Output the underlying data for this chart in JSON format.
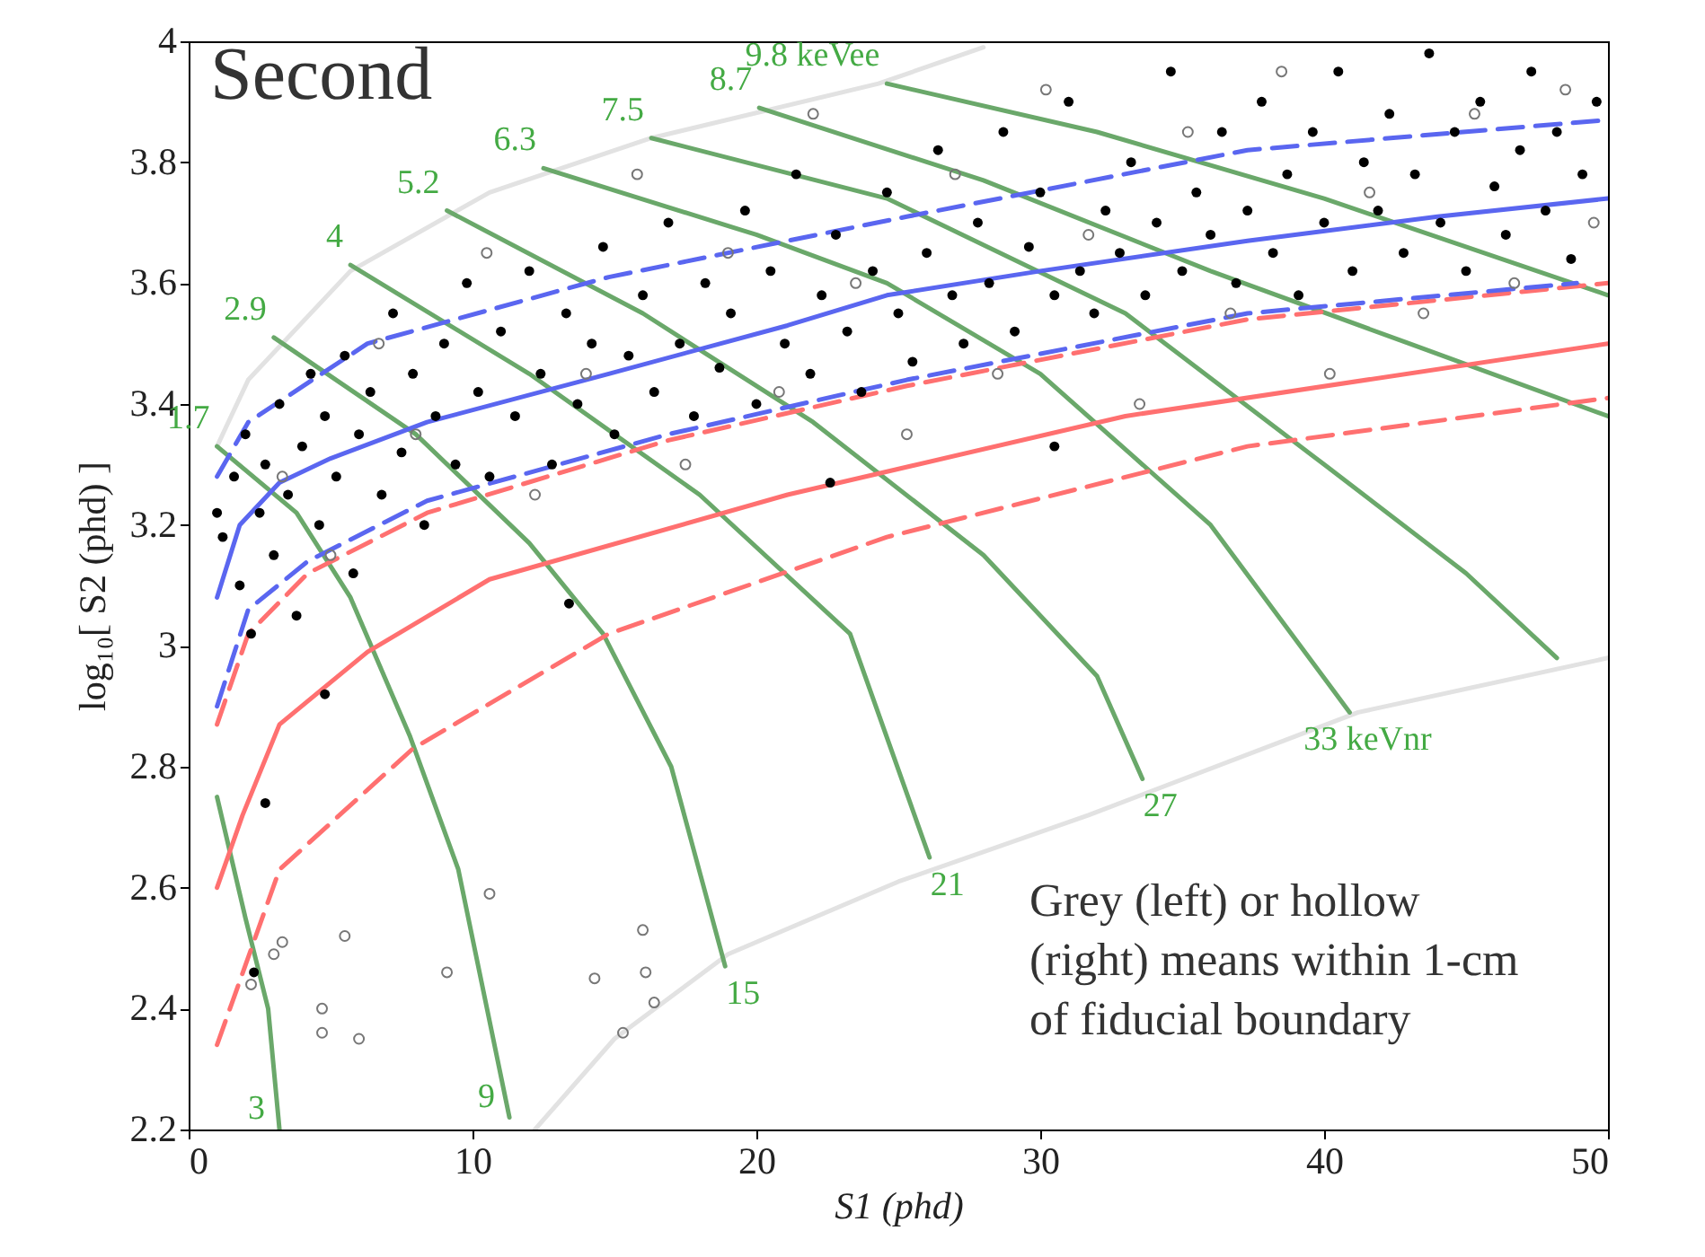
{
  "chart_data": {
    "type": "scatter",
    "title": "Second",
    "xlabel": "S1 (phd)",
    "ylabel": "log₁₀[ S2 (phd) ]",
    "xlim": [
      0,
      50
    ],
    "xticks": [
      0,
      10,
      20,
      30,
      40,
      50
    ],
    "ylim": [
      2.2,
      4
    ],
    "yticks": [
      2.2,
      2.4,
      2.6,
      2.8,
      3,
      3.2,
      3.4,
      3.6,
      3.8,
      4
    ],
    "grid": false,
    "annotations": [
      "Grey (left) or hollow\n(right) means within 1-cm\nof fiducial boundary",
      {
        "text": "1.7",
        "x": 1,
        "y": 3.33
      },
      {
        "text": "2.9",
        "x": 3,
        "y": 3.51
      },
      {
        "text": "4",
        "x": 5.7,
        "y": 3.63
      },
      {
        "text": "5.2",
        "x": 9.1,
        "y": 3.72
      },
      {
        "text": "6.3",
        "x": 12.5,
        "y": 3.79
      },
      {
        "text": "7.5",
        "x": 16.3,
        "y": 3.84
      },
      {
        "text": "8.7",
        "x": 20.1,
        "y": 3.89
      },
      {
        "text": "9.8 keVee",
        "x": 24.6,
        "y": 3.93
      },
      {
        "text": "3",
        "x": 3.2,
        "y": 2.2
      },
      {
        "text": "9",
        "x": 11.3,
        "y": 2.22
      },
      {
        "text": "15",
        "x": 18.9,
        "y": 2.47
      },
      {
        "text": "21",
        "x": 26.1,
        "y": 2.65
      },
      {
        "text": "27",
        "x": 33.6,
        "y": 2.78
      },
      {
        "text": "33 keVnr",
        "x": 40.9,
        "y": 2.89
      }
    ],
    "series": [
      {
        "type": "line",
        "color": "#e2e2e2",
        "line_style": "solid",
        "x": [
          1,
          2.1,
          5.7,
          10.6,
          16.3,
          24.3,
          28
        ],
        "values": [
          3.33,
          3.44,
          3.62,
          3.75,
          3.84,
          3.93,
          3.99
        ]
      },
      {
        "type": "line",
        "color": "#e2e2e2",
        "line_style": "solid",
        "x": [
          12.2,
          15,
          19,
          25,
          31.7,
          41.2,
          50
        ],
        "values": [
          2.2,
          2.35,
          2.49,
          2.61,
          2.72,
          2.89,
          2.98
        ]
      },
      {
        "type": "line",
        "color": "#6aa86a",
        "line_style": "solid",
        "x": [
          1,
          3.8,
          5.7,
          7.8,
          9.5,
          11.3
        ],
        "values": [
          3.33,
          3.22,
          3.08,
          2.85,
          2.63,
          2.22
        ]
      },
      {
        "type": "line",
        "color": "#6aa86a",
        "line_style": "solid",
        "x": [
          3,
          8,
          12,
          14.6,
          17,
          18.9
        ],
        "values": [
          3.51,
          3.35,
          3.17,
          3.02,
          2.8,
          2.47
        ]
      },
      {
        "type": "line",
        "color": "#6aa86a",
        "line_style": "solid",
        "x": [
          5.7,
          12,
          18,
          23.3,
          26.1
        ],
        "values": [
          3.63,
          3.45,
          3.25,
          3.02,
          2.65
        ]
      },
      {
        "type": "line",
        "color": "#6aa86a",
        "line_style": "solid",
        "x": [
          9.1,
          16,
          22,
          28,
          32,
          33.6
        ],
        "values": [
          3.72,
          3.55,
          3.37,
          3.15,
          2.95,
          2.78
        ]
      },
      {
        "type": "line",
        "color": "#6aa86a",
        "line_style": "solid",
        "x": [
          12.5,
          20,
          24.6,
          30,
          36,
          40.9
        ],
        "values": [
          3.79,
          3.68,
          3.6,
          3.45,
          3.2,
          2.89
        ]
      },
      {
        "type": "line",
        "color": "#6aa86a",
        "line_style": "solid",
        "x": [
          16.3,
          24.6,
          33,
          40,
          45,
          48.2
        ],
        "values": [
          3.84,
          3.74,
          3.55,
          3.3,
          3.12,
          2.98
        ]
      },
      {
        "type": "line",
        "color": "#6aa86a",
        "line_style": "solid",
        "x": [
          20.1,
          28,
          36,
          43,
          50
        ],
        "values": [
          3.89,
          3.77,
          3.62,
          3.5,
          3.38
        ]
      },
      {
        "type": "line",
        "color": "#6aa86a",
        "line_style": "solid",
        "x": [
          24.6,
          32,
          40,
          50
        ],
        "values": [
          3.93,
          3.85,
          3.74,
          3.58
        ]
      },
      {
        "type": "line",
        "color": "#6aa86a",
        "line_style": "solid",
        "x": [
          1,
          2,
          2.8,
          3.2
        ],
        "values": [
          2.75,
          2.55,
          2.4,
          2.2
        ]
      },
      {
        "type": "line",
        "color": "#ff7070",
        "line_style": "solid",
        "x": [
          1,
          1.9,
          3.2,
          6.3,
          10.6,
          21.1,
          33,
          50
        ],
        "values": [
          2.6,
          2.72,
          2.87,
          2.99,
          3.11,
          3.25,
          3.38,
          3.5
        ]
      },
      {
        "type": "line",
        "color": "#ff7070",
        "line_style": "dashed",
        "x": [
          1,
          2.1,
          4.2,
          8.4,
          16.9,
          25.3,
          37.3,
          50
        ],
        "values": [
          2.87,
          3.02,
          3.12,
          3.22,
          3.34,
          3.43,
          3.54,
          3.6
        ]
      },
      {
        "type": "line",
        "color": "#ff7070",
        "line_style": "dashed",
        "x": [
          1,
          3.2,
          7.9,
          14.8,
          24.6,
          37.3,
          50
        ],
        "values": [
          2.34,
          2.63,
          2.83,
          3.02,
          3.18,
          3.33,
          3.41
        ]
      },
      {
        "type": "line",
        "color": "#5a66f0",
        "line_style": "solid",
        "x": [
          1,
          1.8,
          3.2,
          5,
          8.4,
          14.8,
          21.1,
          24.6,
          30,
          37.3,
          44,
          50
        ],
        "values": [
          3.08,
          3.2,
          3.27,
          3.31,
          3.37,
          3.45,
          3.53,
          3.58,
          3.62,
          3.67,
          3.71,
          3.74
        ]
      },
      {
        "type": "line",
        "color": "#5a66f0",
        "line_style": "dashed",
        "x": [
          1,
          2.1,
          6.3,
          14.8,
          25.3,
          37.3,
          50
        ],
        "values": [
          3.28,
          3.37,
          3.5,
          3.61,
          3.71,
          3.82,
          3.87
        ]
      },
      {
        "type": "line",
        "color": "#5a66f0",
        "line_style": "dashed",
        "x": [
          1,
          2.1,
          4.2,
          8.4,
          16.9,
          25.3,
          37.3,
          48.9
        ],
        "values": [
          2.9,
          3.06,
          3.14,
          3.24,
          3.35,
          3.44,
          3.55,
          3.6
        ]
      },
      {
        "type": "scatter",
        "color": "#777777",
        "marker": "circle",
        "x": [
          3.3,
          5,
          6.7,
          8,
          10.5,
          12.2,
          14,
          15.8,
          17.5,
          19,
          20.8,
          22,
          23.5,
          25.3,
          27,
          28.5,
          30.2,
          31.7,
          33.5,
          35.2,
          36.7,
          38.5,
          40.2,
          41.6,
          43.5,
          45.3,
          46.7,
          48.5,
          49.5,
          10.6,
          5.5,
          3,
          3.3,
          2.2,
          4.7,
          4.7,
          6,
          9.1,
          14.3,
          16,
          16.1,
          16.4,
          15.3
        ],
        "values": [
          3.28,
          3.15,
          3.5,
          3.35,
          3.65,
          3.25,
          3.45,
          3.78,
          3.3,
          3.65,
          3.42,
          3.88,
          3.6,
          3.35,
          3.78,
          3.45,
          3.92,
          3.68,
          3.4,
          3.85,
          3.55,
          3.95,
          3.45,
          3.75,
          3.55,
          3.88,
          3.6,
          3.92,
          3.7,
          2.59,
          2.52,
          2.49,
          2.51,
          2.44,
          2.4,
          2.36,
          2.35,
          2.46,
          2.45,
          2.53,
          2.46,
          2.41,
          2.36
        ]
      },
      {
        "type": "scatter",
        "color": "#000000",
        "marker": "circle",
        "x": [
          1.2,
          1.6,
          1.8,
          2,
          2.2,
          2.5,
          2.7,
          3,
          3.2,
          3.5,
          3.8,
          4,
          4.3,
          4.6,
          4.8,
          5.2,
          5.5,
          5.8,
          6,
          6.4,
          6.8,
          7.2,
          7.5,
          7.9,
          8.3,
          8.7,
          9,
          9.4,
          9.8,
          10.2,
          10.6,
          11,
          11.5,
          12,
          12.4,
          12.8,
          13.3,
          13.7,
          14.2,
          14.6,
          15,
          15.5,
          16,
          16.4,
          16.9,
          17.3,
          17.8,
          18.2,
          18.7,
          19.1,
          19.6,
          20,
          20.5,
          21,
          21.4,
          21.9,
          22.3,
          22.8,
          23.2,
          23.7,
          24.1,
          24.6,
          25,
          25.5,
          26,
          26.4,
          26.9,
          27.3,
          27.8,
          28.2,
          28.7,
          29.1,
          29.6,
          30,
          30.5,
          31,
          31.4,
          31.9,
          32.3,
          32.8,
          33.2,
          33.7,
          34.1,
          34.6,
          35,
          35.5,
          36,
          36.4,
          36.9,
          37.3,
          37.8,
          38.2,
          38.7,
          39.1,
          39.6,
          40,
          40.5,
          41,
          41.4,
          41.9,
          42.3,
          42.8,
          43.2,
          43.7,
          44.1,
          44.6,
          45,
          45.5,
          46,
          46.4,
          46.9,
          47.3,
          47.8,
          48.2,
          48.7,
          49.1,
          49.6,
          2.3,
          2.7,
          4.8,
          13.4,
          22.6,
          30.5,
          1
        ],
        "values": [
          3.18,
          3.28,
          3.1,
          3.35,
          3.02,
          3.22,
          3.3,
          3.15,
          3.4,
          3.25,
          3.05,
          3.33,
          3.45,
          3.2,
          3.38,
          3.28,
          3.48,
          3.12,
          3.35,
          3.42,
          3.25,
          3.55,
          3.32,
          3.45,
          3.2,
          3.38,
          3.5,
          3.3,
          3.6,
          3.42,
          3.28,
          3.52,
          3.38,
          3.62,
          3.45,
          3.3,
          3.55,
          3.4,
          3.5,
          3.66,
          3.35,
          3.48,
          3.58,
          3.42,
          3.7,
          3.5,
          3.38,
          3.6,
          3.46,
          3.55,
          3.72,
          3.4,
          3.62,
          3.5,
          3.78,
          3.45,
          3.58,
          3.68,
          3.52,
          3.42,
          3.62,
          3.75,
          3.55,
          3.47,
          3.65,
          3.82,
          3.58,
          3.5,
          3.7,
          3.6,
          3.85,
          3.52,
          3.66,
          3.75,
          3.58,
          3.9,
          3.62,
          3.55,
          3.72,
          3.65,
          3.8,
          3.58,
          3.7,
          3.95,
          3.62,
          3.75,
          3.68,
          3.85,
          3.6,
          3.72,
          3.9,
          3.65,
          3.78,
          3.58,
          3.85,
          3.7,
          3.95,
          3.62,
          3.8,
          3.72,
          3.88,
          3.65,
          3.78,
          3.98,
          3.7,
          3.85,
          3.62,
          3.9,
          3.76,
          3.68,
          3.82,
          3.95,
          3.72,
          3.85,
          3.64,
          3.78,
          3.9,
          2.46,
          2.74,
          2.92,
          3.07,
          3.27,
          3.33,
          3.22
        ]
      }
    ]
  }
}
